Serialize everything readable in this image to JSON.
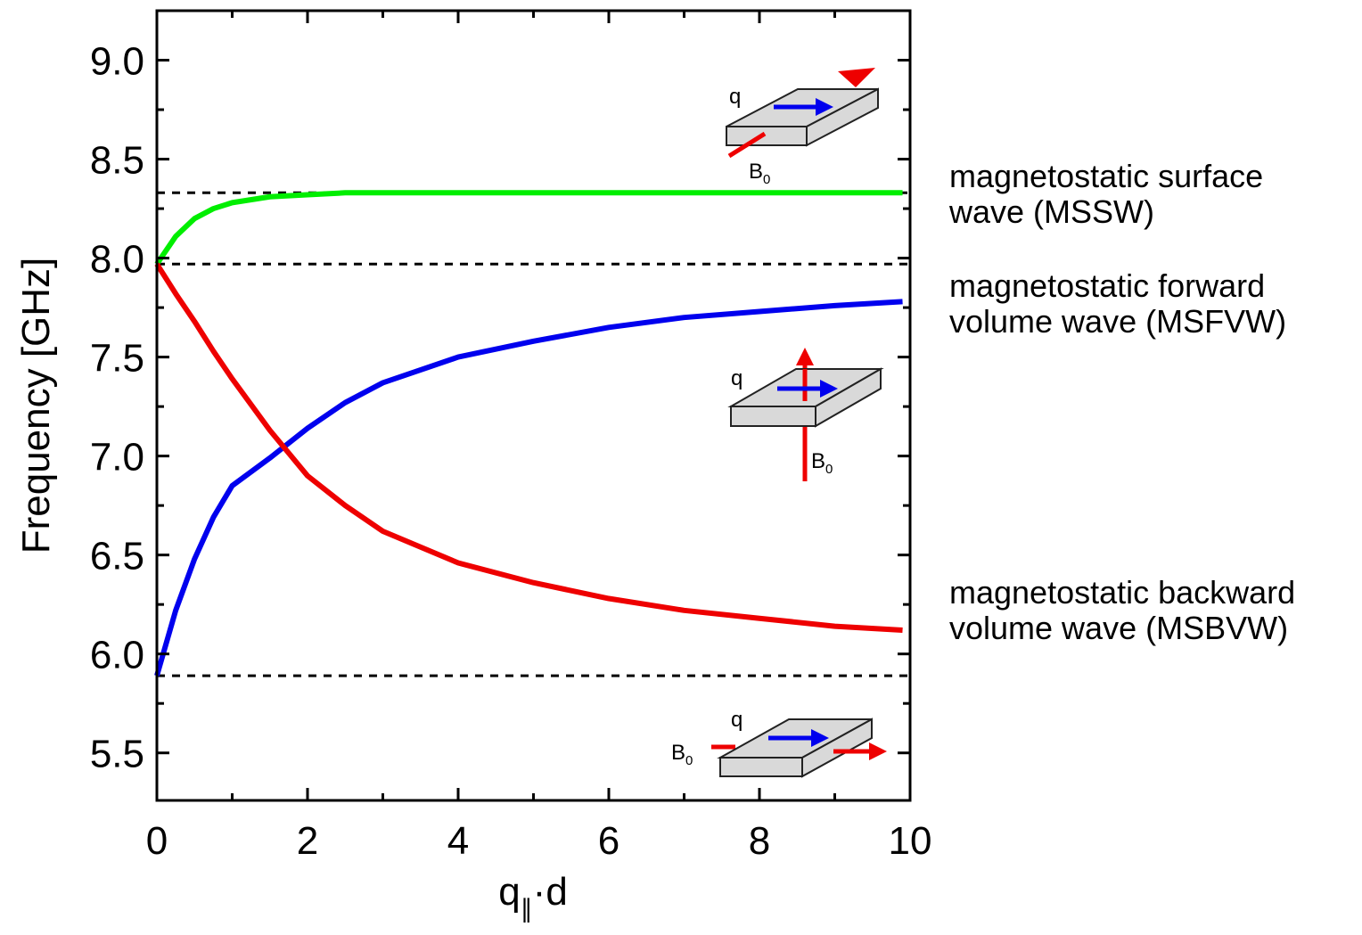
{
  "chart_data": {
    "type": "line",
    "ylabel": "Frequency [GHz]",
    "xlabel": [
      "q",
      "∥",
      "·d"
    ],
    "x": [
      0,
      0.25,
      0.5,
      0.75,
      1,
      1.5,
      2,
      2.5,
      3,
      4,
      5,
      6,
      7,
      8,
      9,
      9.9
    ],
    "series": [
      {
        "name": [
          "magnetostatic surface",
          "wave (MSSW)"
        ],
        "color": "#00ee00",
        "values": [
          7.97,
          8.11,
          8.2,
          8.25,
          8.28,
          8.31,
          8.32,
          8.33,
          8.33,
          8.33,
          8.33,
          8.33,
          8.33,
          8.33,
          8.33,
          8.33
        ]
      },
      {
        "name": [
          "magnetostatic forward",
          "volume wave (MSFVW)"
        ],
        "color": "#0000ee",
        "values": [
          5.89,
          6.22,
          6.48,
          6.69,
          6.85,
          6.99,
          7.14,
          7.27,
          7.37,
          7.5,
          7.58,
          7.65,
          7.7,
          7.73,
          7.76,
          7.78
        ]
      },
      {
        "name": [
          "magnetostatic backward",
          "volume wave (MSBVW)"
        ],
        "color": "#ee0000",
        "values": [
          7.97,
          7.82,
          7.68,
          7.53,
          7.39,
          7.13,
          6.9,
          6.75,
          6.62,
          6.46,
          6.36,
          6.28,
          6.22,
          6.18,
          6.14,
          6.12
        ]
      }
    ],
    "reference_lines": [
      8.33,
      7.97,
      5.89
    ],
    "xlim": [
      0,
      10
    ],
    "ylim": [
      5.26,
      9.25
    ],
    "xticks": [
      0,
      2,
      4,
      6,
      8,
      10
    ],
    "xminorticks": [
      1,
      3,
      5,
      7,
      9
    ],
    "yticks": [
      {
        "value": 5.5,
        "label": "5.5"
      },
      {
        "value": 6,
        "label": "6.0"
      },
      {
        "value": 6.5,
        "label": "6.5"
      },
      {
        "value": 7,
        "label": "7.0"
      },
      {
        "value": 7.5,
        "label": "7.5"
      },
      {
        "value": 8,
        "label": "8.0"
      },
      {
        "value": 8.5,
        "label": "8.5"
      },
      {
        "value": 9,
        "label": "9.0"
      }
    ],
    "yminorticks": [
      5.75,
      6.25,
      6.75,
      7.25,
      7.75,
      8.25,
      8.75
    ],
    "inset_labels": {
      "q": "q",
      "b": "B",
      "sub": "0"
    }
  }
}
